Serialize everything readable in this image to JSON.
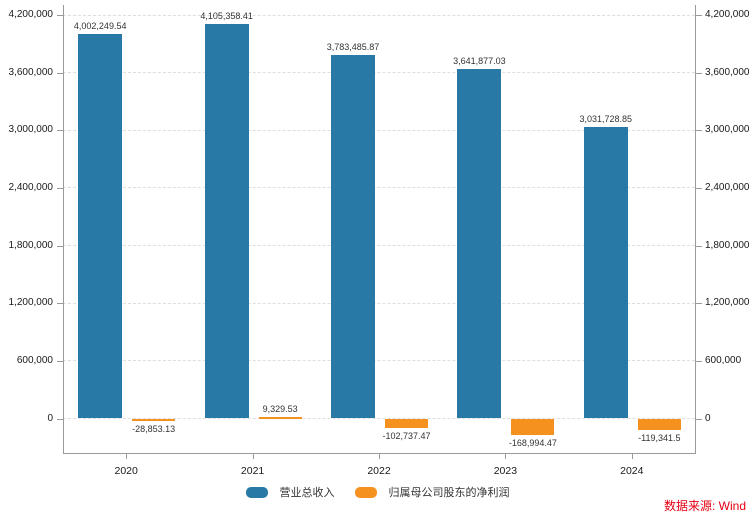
{
  "chart_data": {
    "type": "bar",
    "categories": [
      "2020",
      "2021",
      "2022",
      "2023",
      "2024"
    ],
    "series": [
      {
        "name": "营业总收入",
        "color": "#2879a5",
        "values": [
          4002249.54,
          4105358.41,
          3783485.87,
          3641877.03,
          3031728.85
        ],
        "labels": [
          "4,002,249.54",
          "4,105,358.41",
          "3,783,485.87",
          "3,641,877.03",
          "3,031,728.85"
        ]
      },
      {
        "name": "归属母公司股东的净利润",
        "color": "#f5911e",
        "values": [
          -28853.13,
          9329.53,
          -102737.47,
          -168994.47,
          -119341.5
        ],
        "labels": [
          "-28,853.13",
          "9,329.53",
          "-102,737.47",
          "-168,994.47",
          "-119,341.5"
        ]
      }
    ],
    "title": "",
    "xlabel": "",
    "ylabel": "",
    "y_ticks": [
      0,
      600000,
      1200000,
      1800000,
      2400000,
      3000000,
      3600000,
      4200000
    ],
    "y_tick_labels": [
      "0",
      "600,000",
      "1,200,000",
      "1,800,000",
      "2,400,000",
      "3,000,000",
      "3,600,000",
      "4,200,000"
    ],
    "ylim": [
      -360000,
      4305000
    ],
    "grid": "horizontal-dashed",
    "axes": "dual-y-mirrored",
    "legend_position": "bottom-center",
    "source_note": "数据来源: Wind",
    "source_note_color": "#e60012"
  }
}
